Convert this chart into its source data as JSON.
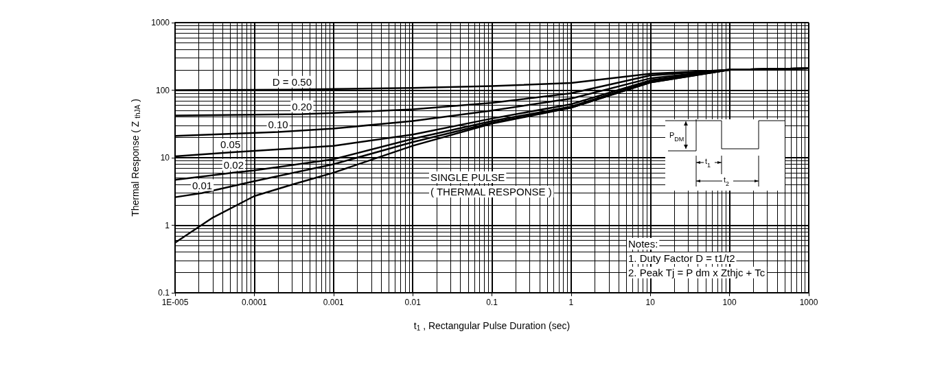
{
  "chart_data": {
    "type": "line",
    "xlabel": "t$_{1}$ , Rectangular Pulse Duration (sec)",
    "ylabel": "Thermal Response ( Z $_{thJA}$ )",
    "log": "xy",
    "grid": true,
    "marker": "none",
    "line_style": "solid",
    "xlim": [
      1e-05,
      1000
    ],
    "xticks": [
      {
        "value": 1e-05,
        "label": "1E-005"
      },
      0.0001,
      0.001,
      0.01,
      0.1,
      1,
      10,
      100,
      1000
    ],
    "ylim": [
      0.1,
      1000
    ],
    "yticks": [
      0.1,
      1,
      10,
      100,
      1000
    ],
    "series": [
      {
        "name": "D = 0.50",
        "color": "#000000",
        "x": [
          1e-05,
          0.0003,
          0.001,
          0.01,
          0.1,
          1,
          10,
          100,
          1000
        ],
        "values": [
          100,
          102,
          104,
          108,
          115,
          128,
          175,
          200,
          210
        ]
      },
      {
        "name": "0.20",
        "color": "#000000",
        "x": [
          1e-05,
          0.0004,
          0.001,
          0.01,
          0.1,
          1,
          10,
          100,
          1000
        ],
        "values": [
          42,
          44,
          46,
          52,
          65,
          90,
          165,
          200,
          210
        ]
      },
      {
        "name": "0.10",
        "color": "#000000",
        "x": [
          1e-05,
          0.0002,
          0.001,
          0.01,
          0.1,
          1,
          10,
          100,
          1000
        ],
        "values": [
          21,
          24,
          27,
          35,
          50,
          75,
          150,
          200,
          210
        ]
      },
      {
        "name": "0.05",
        "color": "#000000",
        "x": [
          1e-05,
          5e-05,
          0.001,
          0.01,
          0.1,
          1,
          10,
          100,
          1000
        ],
        "values": [
          10.5,
          12,
          15,
          22,
          38,
          62,
          140,
          200,
          210
        ]
      },
      {
        "name": "0.02",
        "color": "#000000",
        "x": [
          1e-05,
          5.5e-05,
          0.0001,
          0.001,
          0.01,
          0.1,
          1,
          10,
          100,
          1000
        ],
        "values": [
          4.7,
          6,
          6.5,
          9.5,
          19,
          35,
          57,
          135,
          200,
          210
        ]
      },
      {
        "name": "0.01",
        "color": "#000000",
        "x": [
          1e-05,
          2.2e-05,
          0.0001,
          0.001,
          0.01,
          0.1,
          1,
          10,
          100,
          1000
        ],
        "values": [
          2.6,
          3,
          4.5,
          8,
          17,
          33,
          55,
          130,
          200,
          210
        ]
      },
      {
        "color": "#000000",
        "x": [
          1e-05,
          3e-05,
          0.0001,
          0.0003,
          0.001,
          0.01,
          0.1,
          1,
          10,
          100,
          1000
        ],
        "values": [
          0.55,
          1.3,
          2.7,
          4,
          6,
          15,
          32,
          55,
          130,
          200,
          210
        ]
      }
    ],
    "annotations": [
      "SINGLE PULSE",
      "( THERMAL RESPONSE )",
      "Notes:",
      "1. Duty Factor D = t1/t2",
      "2. Peak Tj = P dm x Zthjc + Tc",
      "P$_{DM}$",
      "t$_{1}$",
      "t$_{2}$"
    ]
  }
}
